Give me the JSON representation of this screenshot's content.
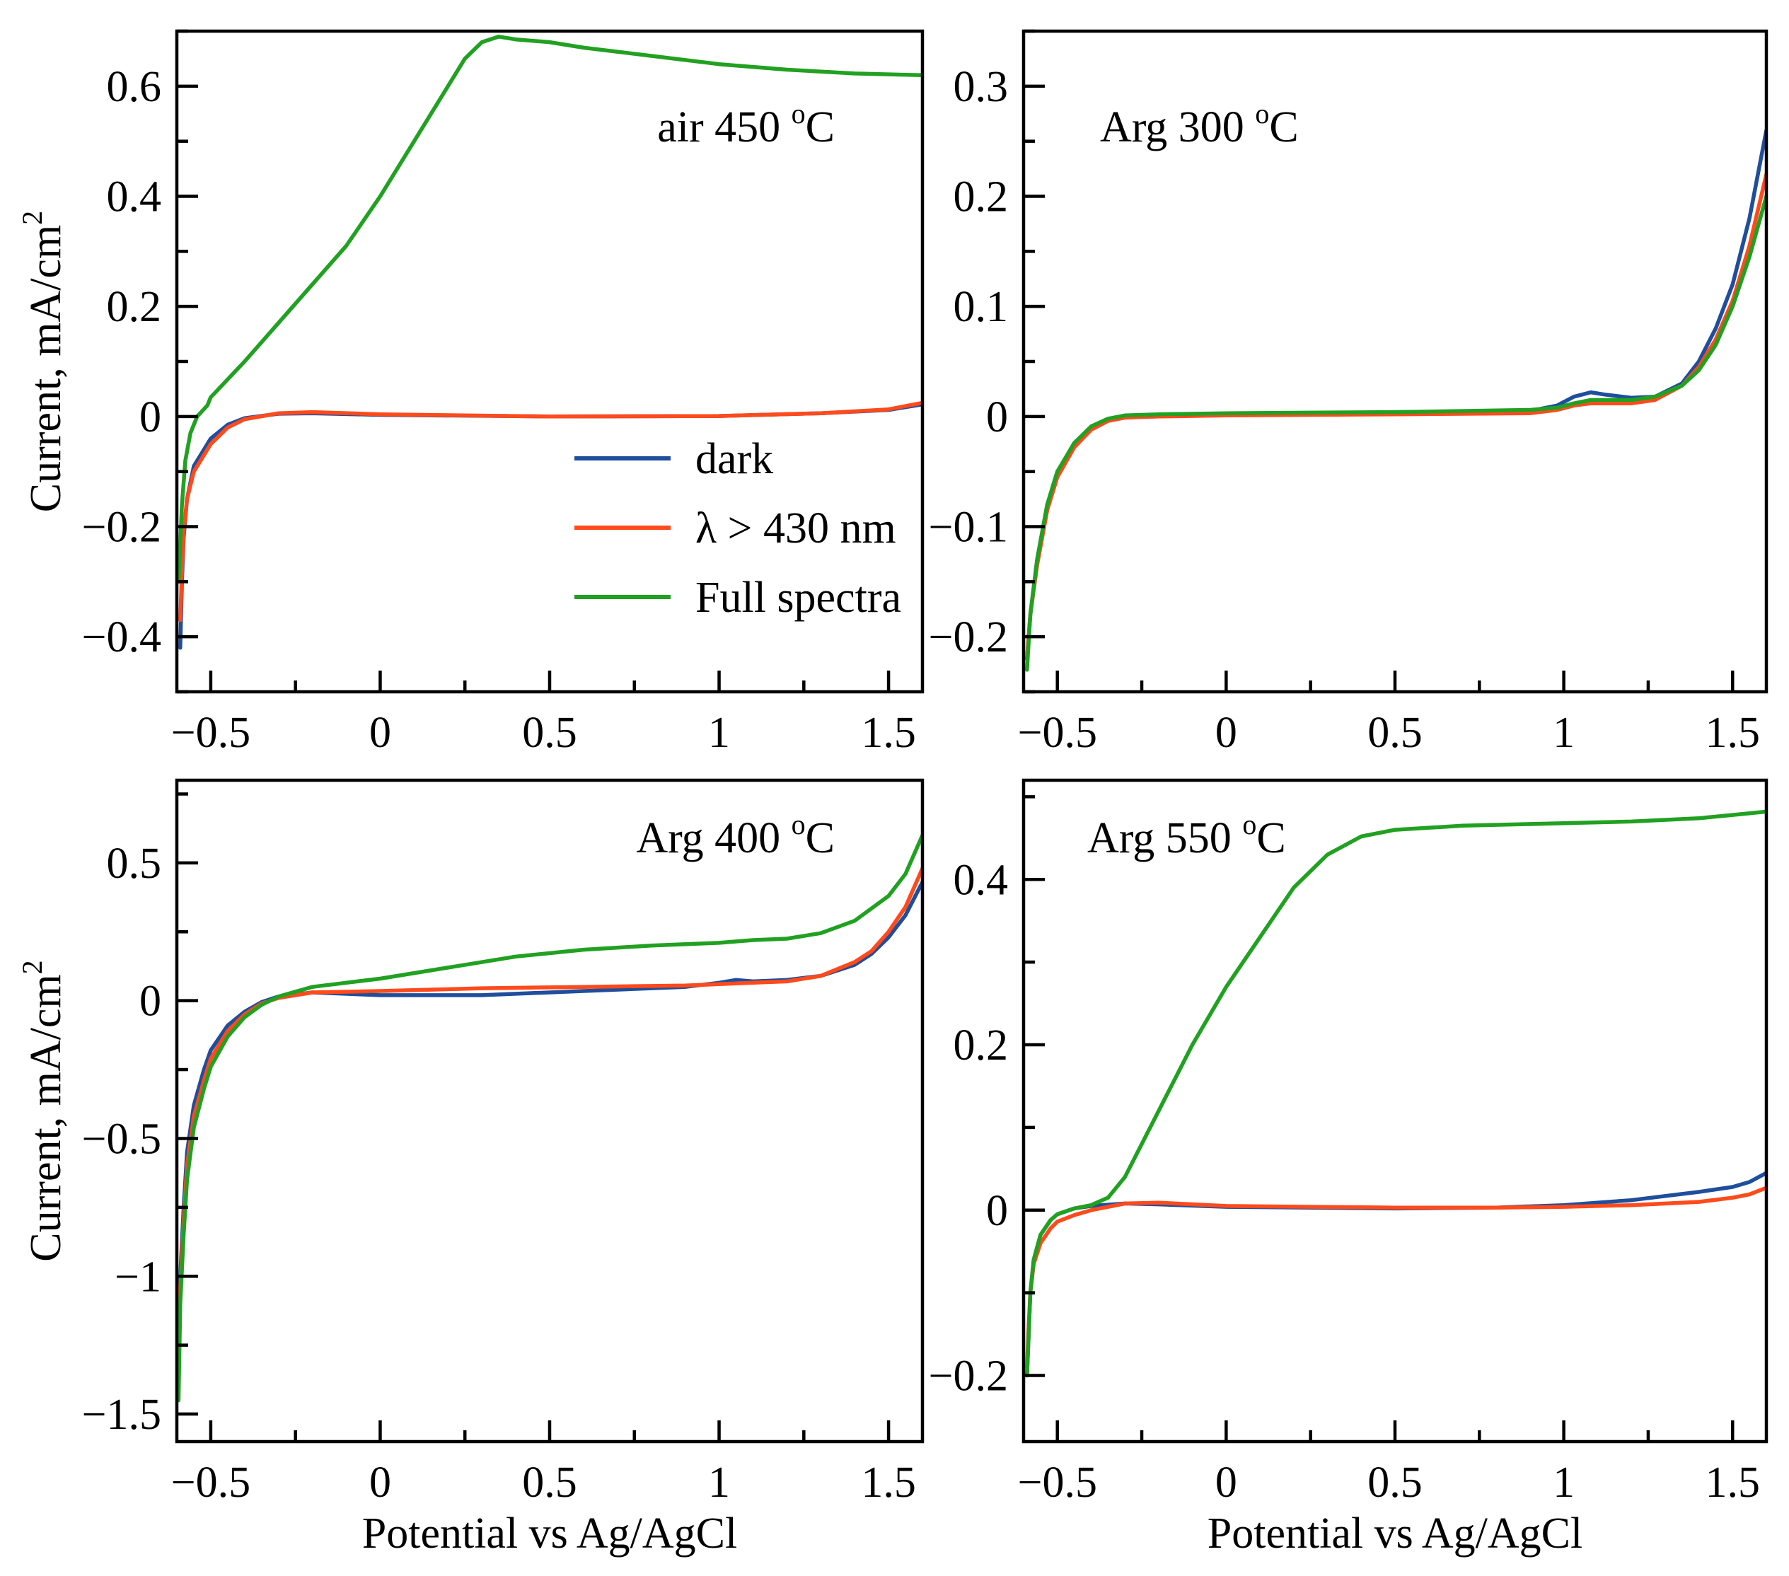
{
  "chart_data": [
    {
      "type": "line",
      "id": "air450",
      "label": "air 450 ",
      "label_unit": "C",
      "label_sup": "o",
      "xlabel": "",
      "ylabel": "Current, mA/cm",
      "ylabel_sup": "2",
      "xlim": [
        -0.6,
        1.6
      ],
      "ylim": [
        -0.5,
        0.7
      ],
      "xticks": [
        -0.5,
        0,
        0.5,
        1,
        1.5
      ],
      "xtick_labels": [
        "−0.5",
        "0",
        "0.5",
        "1",
        "1.5"
      ],
      "yticks": [
        -0.4,
        -0.2,
        0,
        0.2,
        0.4,
        0.6
      ],
      "ytick_labels": [
        "−0.4",
        "−0.2",
        "0",
        "0.2",
        "0.4",
        "0.6"
      ],
      "series": [
        {
          "name": "dark",
          "color": "#1f4e9c",
          "x": [
            -0.59,
            -0.585,
            -0.58,
            -0.57,
            -0.55,
            -0.5,
            -0.45,
            -0.4,
            -0.3,
            -0.2,
            0,
            0.5,
            1,
            1.3,
            1.5,
            1.6
          ],
          "y": [
            -0.42,
            -0.3,
            -0.22,
            -0.15,
            -0.09,
            -0.04,
            -0.015,
            -0.003,
            0.005,
            0.006,
            0.003,
            0.0,
            0.001,
            0.006,
            0.012,
            0.022
          ]
        },
        {
          "name": "λ > 430 nm",
          "color": "#ff4a1c",
          "x": [
            -0.59,
            -0.585,
            -0.58,
            -0.57,
            -0.55,
            -0.5,
            -0.45,
            -0.4,
            -0.3,
            -0.2,
            0,
            0.5,
            1,
            1.3,
            1.5,
            1.6
          ],
          "y": [
            -0.37,
            -0.28,
            -0.21,
            -0.15,
            -0.1,
            -0.05,
            -0.02,
            -0.005,
            0.006,
            0.008,
            0.004,
            0.0,
            0.001,
            0.006,
            0.013,
            0.025
          ]
        },
        {
          "name": "Full spectra",
          "color": "#21a121",
          "x": [
            -0.595,
            -0.585,
            -0.575,
            -0.56,
            -0.54,
            -0.51,
            -0.5,
            -0.4,
            -0.3,
            -0.2,
            -0.1,
            0,
            0.1,
            0.2,
            0.25,
            0.3,
            0.35,
            0.4,
            0.5,
            0.6,
            0.8,
            1.0,
            1.2,
            1.4,
            1.6
          ],
          "y": [
            -0.3,
            -0.16,
            -0.08,
            -0.03,
            0.0,
            0.02,
            0.035,
            0.1,
            0.17,
            0.24,
            0.31,
            0.4,
            0.5,
            0.6,
            0.65,
            0.68,
            0.69,
            0.685,
            0.68,
            0.67,
            0.655,
            0.64,
            0.63,
            0.623,
            0.62
          ]
        }
      ]
    },
    {
      "type": "line",
      "id": "arg300",
      "label": "Arg 300 ",
      "label_unit": "C",
      "label_sup": "o",
      "xlabel": "",
      "ylabel": "",
      "xlim": [
        -0.6,
        1.6
      ],
      "ylim": [
        -0.25,
        0.35
      ],
      "xticks": [
        -0.5,
        0,
        0.5,
        1,
        1.5
      ],
      "xtick_labels": [
        "−0.5",
        "0",
        "0.5",
        "1",
        "1.5"
      ],
      "yticks": [
        -0.2,
        -0.1,
        0,
        0.1,
        0.2,
        0.3
      ],
      "ytick_labels": [
        "−0.2",
        "−0.1",
        "0",
        "0.1",
        "0.2",
        "0.3"
      ],
      "series": [
        {
          "name": "dark",
          "color": "#1f4e9c",
          "x": [
            -0.59,
            -0.58,
            -0.56,
            -0.53,
            -0.5,
            -0.45,
            -0.4,
            -0.35,
            -0.3,
            -0.2,
            0,
            0.5,
            0.9,
            0.98,
            1.03,
            1.08,
            1.12,
            1.2,
            1.27,
            1.35,
            1.4,
            1.45,
            1.5,
            1.55,
            1.6
          ],
          "y": [
            -0.22,
            -0.18,
            -0.13,
            -0.08,
            -0.05,
            -0.025,
            -0.01,
            -0.003,
            0.0,
            0.001,
            0.002,
            0.004,
            0.005,
            0.01,
            0.018,
            0.022,
            0.02,
            0.017,
            0.018,
            0.03,
            0.05,
            0.08,
            0.12,
            0.18,
            0.26
          ]
        },
        {
          "name": "λ > 430 nm",
          "color": "#ff4a1c",
          "x": [
            -0.59,
            -0.58,
            -0.56,
            -0.53,
            -0.5,
            -0.45,
            -0.4,
            -0.35,
            -0.3,
            -0.2,
            0,
            0.5,
            0.9,
            0.98,
            1.03,
            1.08,
            1.12,
            1.2,
            1.27,
            1.35,
            1.4,
            1.45,
            1.5,
            1.55,
            1.6
          ],
          "y": [
            -0.22,
            -0.18,
            -0.135,
            -0.085,
            -0.055,
            -0.028,
            -0.012,
            -0.004,
            -0.001,
            0.0,
            0.001,
            0.002,
            0.003,
            0.006,
            0.01,
            0.012,
            0.012,
            0.012,
            0.015,
            0.028,
            0.045,
            0.07,
            0.105,
            0.155,
            0.22
          ]
        },
        {
          "name": "Full spectra",
          "color": "#21a121",
          "x": [
            -0.59,
            -0.58,
            -0.56,
            -0.53,
            -0.5,
            -0.45,
            -0.4,
            -0.35,
            -0.3,
            -0.2,
            0,
            0.5,
            0.9,
            0.98,
            1.03,
            1.08,
            1.12,
            1.2,
            1.27,
            1.35,
            1.4,
            1.45,
            1.5,
            1.55,
            1.6
          ],
          "y": [
            -0.23,
            -0.18,
            -0.13,
            -0.08,
            -0.05,
            -0.024,
            -0.009,
            -0.002,
            0.001,
            0.002,
            0.003,
            0.004,
            0.006,
            0.008,
            0.012,
            0.015,
            0.015,
            0.015,
            0.018,
            0.028,
            0.042,
            0.065,
            0.1,
            0.145,
            0.2
          ]
        }
      ]
    },
    {
      "type": "line",
      "id": "arg400",
      "label": "Arg 400 ",
      "label_unit": "C",
      "label_sup": "o",
      "xlabel": "Potential vs Ag/AgCl",
      "ylabel": "Current, mA/cm",
      "ylabel_sup": "2",
      "xlim": [
        -0.6,
        1.6
      ],
      "ylim": [
        -1.6,
        0.8
      ],
      "xticks": [
        -0.5,
        0,
        0.5,
        1,
        1.5
      ],
      "xtick_labels": [
        "−0.5",
        "0",
        "0.5",
        "1",
        "1.5"
      ],
      "yticks": [
        -1.5,
        -1,
        -0.5,
        0,
        0.5
      ],
      "ytick_labels": [
        "−1.5",
        "−1",
        "−0.5",
        "0",
        "0.5"
      ],
      "series": [
        {
          "name": "dark",
          "color": "#1f4e9c",
          "x": [
            -0.595,
            -0.59,
            -0.58,
            -0.57,
            -0.55,
            -0.52,
            -0.5,
            -0.45,
            -0.4,
            -0.35,
            -0.3,
            -0.2,
            0,
            0.3,
            0.6,
            0.9,
            1.0,
            1.05,
            1.1,
            1.2,
            1.3,
            1.4,
            1.45,
            1.5,
            1.55,
            1.6
          ],
          "y": [
            -1.35,
            -1.0,
            -0.75,
            -0.55,
            -0.38,
            -0.25,
            -0.18,
            -0.09,
            -0.04,
            -0.005,
            0.015,
            0.03,
            0.02,
            0.02,
            0.035,
            0.05,
            0.065,
            0.075,
            0.07,
            0.075,
            0.09,
            0.13,
            0.17,
            0.23,
            0.31,
            0.43
          ]
        },
        {
          "name": "λ > 430 nm",
          "color": "#ff4a1c",
          "x": [
            -0.595,
            -0.59,
            -0.58,
            -0.57,
            -0.55,
            -0.52,
            -0.5,
            -0.45,
            -0.4,
            -0.35,
            -0.3,
            -0.2,
            0,
            0.3,
            0.6,
            0.9,
            1.0,
            1.1,
            1.2,
            1.3,
            1.4,
            1.45,
            1.5,
            1.55,
            1.6
          ],
          "y": [
            -1.4,
            -1.05,
            -0.8,
            -0.6,
            -0.42,
            -0.29,
            -0.21,
            -0.11,
            -0.05,
            -0.01,
            0.01,
            0.03,
            0.035,
            0.045,
            0.05,
            0.055,
            0.06,
            0.065,
            0.07,
            0.09,
            0.14,
            0.18,
            0.25,
            0.34,
            0.48
          ]
        },
        {
          "name": "Full spectra",
          "color": "#21a121",
          "x": [
            -0.595,
            -0.59,
            -0.58,
            -0.57,
            -0.55,
            -0.52,
            -0.5,
            -0.45,
            -0.4,
            -0.35,
            -0.3,
            -0.2,
            -0.1,
            0,
            0.2,
            0.4,
            0.6,
            0.8,
            1.0,
            1.1,
            1.2,
            1.3,
            1.4,
            1.5,
            1.55,
            1.6
          ],
          "y": [
            -1.45,
            -1.1,
            -0.85,
            -0.65,
            -0.46,
            -0.32,
            -0.24,
            -0.13,
            -0.06,
            -0.015,
            0.015,
            0.05,
            0.065,
            0.08,
            0.12,
            0.16,
            0.185,
            0.2,
            0.21,
            0.22,
            0.225,
            0.245,
            0.29,
            0.38,
            0.46,
            0.6
          ]
        }
      ]
    },
    {
      "type": "line",
      "id": "arg550",
      "label": "Arg 550 ",
      "label_unit": "C",
      "label_sup": "o",
      "xlabel": "Potential vs Ag/AgCl",
      "ylabel": "",
      "xlim": [
        -0.6,
        1.6
      ],
      "ylim": [
        -0.28,
        0.52
      ],
      "xticks": [
        -0.5,
        0,
        0.5,
        1,
        1.5
      ],
      "xtick_labels": [
        "−0.5",
        "0",
        "0.5",
        "1",
        "1.5"
      ],
      "yticks": [
        -0.2,
        0,
        0.2,
        0.4
      ],
      "ytick_labels": [
        "−0.2",
        "0",
        "0.2",
        "0.4"
      ],
      "series": [
        {
          "name": "dark",
          "color": "#1f4e9c",
          "x": [
            -0.59,
            -0.585,
            -0.58,
            -0.57,
            -0.55,
            -0.52,
            -0.5,
            -0.45,
            -0.4,
            -0.3,
            -0.2,
            0,
            0.5,
            0.8,
            1.0,
            1.2,
            1.4,
            1.5,
            1.55,
            1.6
          ],
          "y": [
            -0.2,
            -0.15,
            -0.1,
            -0.06,
            -0.03,
            -0.012,
            -0.005,
            0.002,
            0.005,
            0.008,
            0.007,
            0.004,
            0.002,
            0.003,
            0.006,
            0.012,
            0.022,
            0.028,
            0.034,
            0.045
          ]
        },
        {
          "name": "λ > 430 nm",
          "color": "#ff4a1c",
          "x": [
            -0.59,
            -0.585,
            -0.58,
            -0.57,
            -0.55,
            -0.52,
            -0.5,
            -0.45,
            -0.4,
            -0.3,
            -0.2,
            0,
            0.5,
            0.8,
            1.0,
            1.2,
            1.4,
            1.5,
            1.55,
            1.6
          ],
          "y": [
            -0.19,
            -0.14,
            -0.1,
            -0.065,
            -0.04,
            -0.022,
            -0.014,
            -0.006,
            0.0,
            0.008,
            0.009,
            0.005,
            0.003,
            0.003,
            0.004,
            0.006,
            0.01,
            0.015,
            0.019,
            0.027
          ]
        },
        {
          "name": "Full spectra",
          "color": "#21a121",
          "x": [
            -0.59,
            -0.585,
            -0.58,
            -0.57,
            -0.55,
            -0.52,
            -0.5,
            -0.45,
            -0.4,
            -0.35,
            -0.3,
            -0.2,
            -0.1,
            0,
            0.1,
            0.2,
            0.3,
            0.4,
            0.5,
            0.7,
            1.0,
            1.2,
            1.4,
            1.5,
            1.6
          ],
          "y": [
            -0.2,
            -0.15,
            -0.1,
            -0.06,
            -0.03,
            -0.012,
            -0.005,
            0.002,
            0.006,
            0.015,
            0.04,
            0.12,
            0.2,
            0.27,
            0.33,
            0.39,
            0.43,
            0.452,
            0.46,
            0.465,
            0.468,
            0.47,
            0.474,
            0.478,
            0.482
          ]
        }
      ]
    }
  ],
  "legend": {
    "location": "center inside air 450 panel",
    "entries": [
      {
        "name": "dark",
        "color": "#1f4e9c"
      },
      {
        "name": "λ > 430 nm",
        "color": "#ff4a1c"
      },
      {
        "name": "Full spectra",
        "color": "#21a121"
      }
    ]
  }
}
